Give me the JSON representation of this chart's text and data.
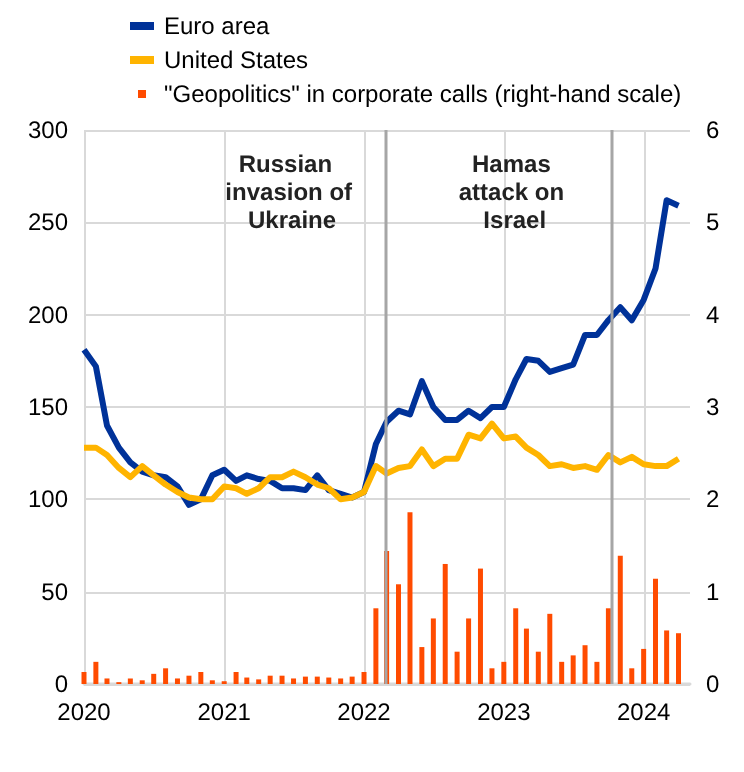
{
  "chart_data": {
    "type": "line",
    "x": [
      "2020-01",
      "2020-02",
      "2020-03",
      "2020-04",
      "2020-05",
      "2020-06",
      "2020-07",
      "2020-08",
      "2020-09",
      "2020-10",
      "2020-11",
      "2020-12",
      "2021-01",
      "2021-02",
      "2021-03",
      "2021-04",
      "2021-05",
      "2021-06",
      "2021-07",
      "2021-08",
      "2021-09",
      "2021-10",
      "2021-11",
      "2021-12",
      "2022-01",
      "2022-02",
      "2022-03",
      "2022-04",
      "2022-05",
      "2022-06",
      "2022-07",
      "2022-08",
      "2022-09",
      "2022-10",
      "2022-11",
      "2022-12",
      "2023-01",
      "2023-02",
      "2023-03",
      "2023-04",
      "2023-05",
      "2023-06",
      "2023-07",
      "2023-08",
      "2023-09",
      "2023-10",
      "2023-11",
      "2023-12",
      "2024-01",
      "2024-02",
      "2024-03",
      "2024-04"
    ],
    "series": [
      {
        "name": "Euro area",
        "color": "#003299",
        "values": [
          181,
          172,
          140,
          128,
          120,
          115,
          113,
          112,
          107,
          97,
          100,
          113,
          116,
          110,
          113,
          111,
          110,
          106,
          106,
          105,
          113,
          105,
          103,
          101,
          104,
          130,
          142,
          148,
          146,
          164,
          150,
          143,
          143,
          148,
          144,
          150,
          150,
          165,
          176,
          175,
          169,
          171,
          173,
          189,
          189,
          197,
          204,
          197,
          208,
          225,
          262,
          259
        ]
      },
      {
        "name": "United States",
        "color": "#ffb400",
        "values": [
          128,
          128,
          124,
          117,
          112,
          118,
          113,
          108,
          104,
          101,
          100,
          100,
          107,
          106,
          103,
          106,
          112,
          112,
          115,
          112,
          108,
          106,
          100,
          101,
          104,
          118,
          114,
          117,
          118,
          127,
          118,
          122,
          122,
          135,
          133,
          141,
          133,
          134,
          128,
          124,
          118,
          119,
          117,
          118,
          116,
          124,
          120,
          123,
          119,
          118,
          118,
          122
        ]
      },
      {
        "name": "\"Geopolitics\" in corporate calls (right-hand scale)",
        "type": "bar",
        "axis": "y2",
        "color": "#ff4b00",
        "values": [
          0.13,
          0.24,
          0.06,
          0.02,
          0.06,
          0.04,
          0.11,
          0.17,
          0.06,
          0.09,
          0.13,
          0.04,
          0.03,
          0.13,
          0.07,
          0.05,
          0.09,
          0.09,
          0.06,
          0.08,
          0.08,
          0.07,
          0.06,
          0.08,
          0.13,
          0.82,
          1.44,
          1.08,
          1.86,
          0.4,
          0.71,
          1.3,
          0.35,
          0.71,
          1.25,
          0.17,
          0.24,
          0.82,
          0.6,
          0.35,
          0.76,
          0.24,
          0.31,
          0.42,
          0.24,
          0.82,
          1.39,
          0.17,
          0.38,
          1.14,
          0.58,
          0.55
        ]
      }
    ],
    "xlim": [
      "2020-01",
      "2024-05"
    ],
    "xticks": [
      "2020",
      "2021",
      "2022",
      "2023",
      "2024"
    ],
    "ylim": [
      0,
      300
    ],
    "yticks": [
      0,
      50,
      100,
      150,
      200,
      250,
      300
    ],
    "y2lim": [
      0,
      6
    ],
    "y2ticks": [
      0,
      1,
      2,
      3,
      4,
      5,
      6
    ],
    "ref_lines": [
      {
        "axis": "x",
        "value": "2022-02-24",
        "label": "Russian invasion of Ukraine",
        "color": "#a6a6a6"
      },
      {
        "axis": "x",
        "value": "2023-10-07",
        "label": "Hamas attack on Israel",
        "color": "#a6a6a6"
      }
    ],
    "grid": true,
    "legend": "top left",
    "marker": "none",
    "line_style": "solid"
  }
}
